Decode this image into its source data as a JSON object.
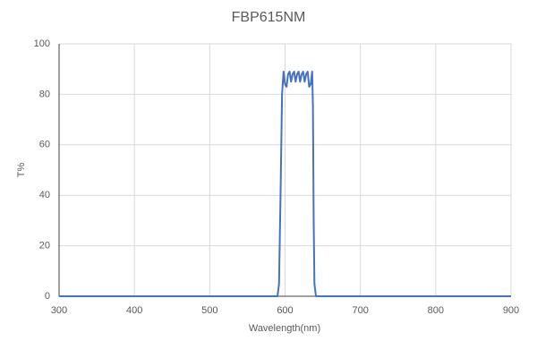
{
  "chart_data": {
    "type": "line",
    "title": "FBP615NM",
    "x_label": "Wavelength(nm)",
    "y_label": "T%",
    "x": [
      300,
      590,
      592,
      594,
      596,
      598,
      600,
      602,
      604,
      606,
      608,
      610,
      612,
      614,
      616,
      618,
      620,
      622,
      624,
      626,
      628,
      630,
      632,
      634,
      636,
      637,
      638,
      639,
      641,
      900
    ],
    "values": [
      0,
      0,
      5,
      40,
      80,
      89,
      84,
      83,
      88,
      89,
      85,
      88,
      89,
      85,
      88,
      89,
      85,
      88,
      89,
      85,
      88,
      89,
      83,
      84,
      89,
      75,
      30,
      5,
      0,
      0
    ],
    "color": "#4472c4",
    "xlim": [
      300,
      900
    ],
    "xticks": [
      300,
      400,
      500,
      600,
      700,
      800,
      900
    ],
    "ylim": [
      0,
      100
    ],
    "yticks": [
      0,
      20,
      40,
      60,
      80,
      100
    ],
    "grid": true
  }
}
